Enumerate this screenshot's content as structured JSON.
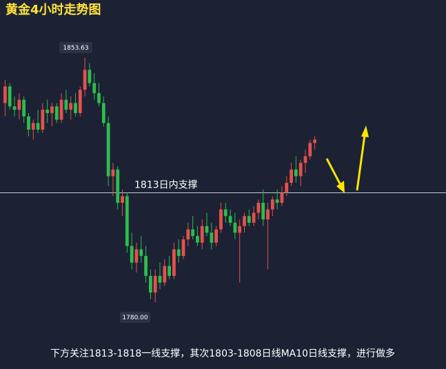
{
  "chart_data": {
    "type": "candlestick",
    "title": "黄金4小时走势图",
    "open": [
      1840,
      1845,
      1839,
      1838,
      1841,
      1836,
      1832,
      1834,
      1832,
      1838,
      1837,
      1839,
      1835,
      1841,
      1838,
      1840,
      1837,
      1844,
      1850,
      1846,
      1843,
      1840,
      1834,
      1818,
      1820,
      1810,
      1812,
      1797,
      1792,
      1796,
      1794,
      1788,
      1783,
      1788,
      1786,
      1791,
      1788,
      1796,
      1794,
      1799,
      1802,
      1800,
      1798,
      1803,
      1801,
      1798,
      1802,
      1808,
      1806,
      1804,
      1801,
      1803,
      1806,
      1804,
      1807,
      1810,
      1805,
      1808,
      1811,
      1810,
      1813,
      1816,
      1820,
      1818,
      1822,
      1824,
      1828
    ],
    "high": [
      1847,
      1846,
      1842,
      1843,
      1842,
      1837,
      1835,
      1838,
      1840,
      1841,
      1840,
      1840,
      1843,
      1844,
      1842,
      1843,
      1845,
      1853.63,
      1852,
      1849,
      1846,
      1842,
      1836,
      1822,
      1821,
      1814,
      1813,
      1801,
      1798,
      1800,
      1797,
      1790,
      1790,
      1792,
      1793,
      1794,
      1798,
      1799,
      1800,
      1804,
      1806,
      1803,
      1805,
      1807,
      1804,
      1803,
      1810,
      1810,
      1808,
      1807,
      1805,
      1807,
      1808,
      1809,
      1811,
      1814,
      1810,
      1812,
      1814,
      1815,
      1818,
      1822,
      1824,
      1823,
      1826,
      1829,
      1830
    ],
    "low": [
      1836,
      1838,
      1836,
      1835,
      1834,
      1830,
      1829,
      1831,
      1831,
      1834,
      1833,
      1834,
      1834,
      1837,
      1835,
      1836,
      1836,
      1842,
      1845,
      1841,
      1839,
      1833,
      1815,
      1812,
      1808,
      1806,
      1795,
      1790,
      1789,
      1792,
      1786,
      1781,
      1780,
      1784,
      1785,
      1787,
      1787,
      1792,
      1793,
      1797,
      1799,
      1797,
      1796,
      1800,
      1796,
      1797,
      1801,
      1804,
      1803,
      1799,
      1786,
      1801,
      1803,
      1803,
      1805,
      1803,
      1790,
      1806,
      1808,
      1809,
      1812,
      1815,
      1816,
      1815,
      1819,
      1823,
      1826
    ],
    "close": [
      1845,
      1839,
      1838,
      1841,
      1836,
      1832,
      1834,
      1832,
      1838,
      1837,
      1839,
      1835,
      1841,
      1838,
      1840,
      1837,
      1844,
      1850,
      1846,
      1843,
      1840,
      1834,
      1818,
      1820,
      1810,
      1812,
      1797,
      1792,
      1796,
      1794,
      1788,
      1783,
      1788,
      1786,
      1791,
      1788,
      1796,
      1794,
      1799,
      1802,
      1800,
      1798,
      1803,
      1801,
      1798,
      1802,
      1808,
      1806,
      1804,
      1801,
      1803,
      1806,
      1804,
      1807,
      1810,
      1805,
      1808,
      1811,
      1810,
      1813,
      1816,
      1820,
      1818,
      1822,
      1824,
      1828,
      1829
    ],
    "up_color": "#e5504e",
    "down_color": "#2dbd4e",
    "ylim": [
      1760,
      1871
    ],
    "annotations": [
      "1853.63",
      "1780.00"
    ],
    "support_line": {
      "value": 1813,
      "label": "1813日内支撑"
    },
    "caption": "下方关注1813-1818一线支撑，其次1803-1808日线MA10日线支撑，进行做多"
  }
}
